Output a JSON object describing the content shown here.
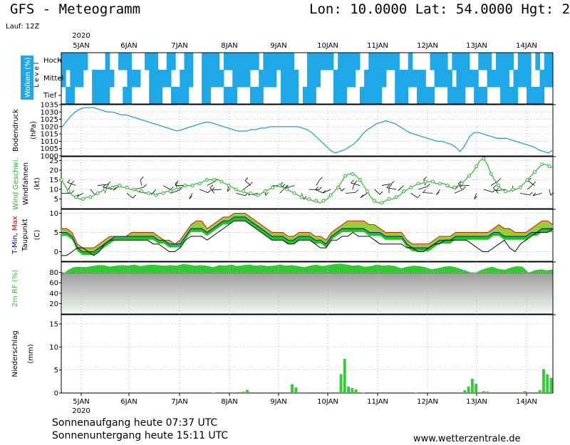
{
  "header": {
    "title": "GFS - Meteogramm",
    "location": "Lon: 10.0000 Lat: 54.0000 Hgt: 2",
    "run": "Lauf: 12Z"
  },
  "footer": {
    "sunrise": "Sonnenaufgang heute 07:37 UTC",
    "sunset": "Sonnenuntergang heute 15:11 UTC",
    "website": "www.wetterzentrale.de"
  },
  "colors": {
    "cloud": "#1fa8e8",
    "pressure": "#2a9fd6",
    "wind": "#2db82d",
    "rh": "#2ecc2e",
    "precip": "#33cc33",
    "tmin": "#0000cc",
    "tmax": "#dd0000",
    "temp_band": "#9acd32"
  },
  "chart_data": [
    {
      "type": "heatmap",
      "panel": "clouds",
      "ylabel": "Wolken (%)",
      "ylabel_side": "L e v e l",
      "levels": [
        "Hoch",
        "Mittel",
        "Tief"
      ],
      "x_top_year": "2020",
      "x_bottom_year": "2020",
      "x_ticks": [
        "5JAN",
        "6JAN",
        "7JAN",
        "8JAN",
        "9JAN",
        "10JAN",
        "11JAN",
        "12JAN",
        "13JAN",
        "14JAN"
      ],
      "cover_hoch": [
        1,
        1,
        1,
        1,
        1,
        1,
        0,
        0,
        0,
        0,
        1,
        0,
        0,
        1,
        1,
        1,
        0,
        0,
        0,
        1,
        1,
        1,
        0,
        0,
        1,
        1,
        0,
        0,
        1,
        1,
        0,
        0,
        1,
        1,
        1,
        1,
        0,
        1,
        1,
        1,
        1,
        1,
        1,
        1,
        1,
        0,
        1,
        1,
        1,
        1,
        1,
        1,
        1,
        0,
        0,
        0,
        1,
        1,
        1,
        1,
        1,
        1,
        0,
        1,
        1,
        1,
        1,
        1,
        0,
        0,
        1,
        1,
        1,
        1,
        1,
        1,
        1,
        0,
        0,
        1,
        0,
        0,
        0,
        0,
        1,
        1,
        1,
        1,
        0,
        1,
        1,
        1,
        1,
        0,
        0,
        1,
        1,
        1,
        0,
        1,
        1,
        1,
        1,
        0,
        1,
        1,
        1,
        0,
        1,
        0,
        1,
        1
      ],
      "cover_mittel": [
        1,
        0,
        1,
        1,
        1,
        0,
        0,
        1,
        1,
        1,
        1,
        1,
        0,
        0,
        0,
        1,
        1,
        1,
        0,
        0,
        1,
        1,
        1,
        1,
        1,
        0,
        0,
        1,
        1,
        1,
        0,
        0,
        1,
        1,
        1,
        1,
        1,
        0,
        0,
        1,
        1,
        1,
        1,
        0,
        0,
        1,
        1,
        1,
        1,
        0,
        1,
        1,
        1,
        1,
        0,
        0,
        1,
        1,
        1,
        0,
        0,
        0,
        1,
        1,
        1,
        1,
        1,
        0,
        0,
        1,
        1,
        1,
        1,
        1,
        0,
        0,
        1,
        1,
        1,
        1,
        1,
        1,
        1,
        0,
        0,
        1,
        1,
        1,
        1,
        0,
        1,
        1,
        1,
        1,
        1,
        0,
        0,
        1,
        1,
        1,
        1,
        1,
        0,
        1,
        1,
        1,
        1,
        0,
        0,
        1,
        1,
        1
      ],
      "cover_tief": [
        0,
        1,
        1,
        0,
        0,
        0,
        0,
        1,
        1,
        1,
        1,
        0,
        0,
        0,
        1,
        1,
        0,
        0,
        0,
        0,
        1,
        1,
        1,
        0,
        0,
        1,
        1,
        1,
        1,
        0,
        0,
        0,
        1,
        1,
        0,
        0,
        0,
        1,
        1,
        1,
        0,
        0,
        0,
        1,
        1,
        1,
        0,
        0,
        0,
        0,
        1,
        1,
        1,
        1,
        0,
        1,
        1,
        1,
        0,
        0,
        0,
        0,
        1,
        1,
        1,
        0,
        0,
        0,
        1,
        1,
        1,
        1,
        1,
        0,
        0,
        0,
        1,
        1,
        1,
        0,
        0,
        1,
        1,
        1,
        1,
        0,
        0,
        0,
        1,
        1,
        1,
        1,
        0,
        0,
        1,
        1,
        1,
        0,
        0,
        0,
        1,
        1,
        1,
        1,
        0,
        0,
        1,
        1,
        1,
        1,
        0,
        0
      ]
    },
    {
      "type": "line",
      "panel": "pressure",
      "ylabel": "Bodendruck",
      "unit": "(hPa)",
      "ylim": [
        1000,
        1035
      ],
      "yticks": [
        1000,
        1005,
        1010,
        1015,
        1020,
        1025,
        1030,
        1035
      ],
      "series": [
        {
          "values": [
            1019,
            1023,
            1027,
            1030,
            1032,
            1033,
            1033,
            1033,
            1032,
            1031,
            1030,
            1030,
            1029,
            1028,
            1028,
            1027,
            1026,
            1025,
            1024,
            1023,
            1022,
            1021,
            1020,
            1019,
            1018,
            1017,
            1018,
            1019,
            1020,
            1021,
            1022,
            1023,
            1023,
            1022,
            1021,
            1020,
            1019,
            1018,
            1017,
            1017,
            1017,
            1018,
            1018,
            1019,
            1019,
            1020,
            1020,
            1020,
            1020,
            1020,
            1020,
            1020,
            1019,
            1018,
            1016,
            1013,
            1010,
            1007,
            1004,
            1002,
            1003,
            1004,
            1006,
            1008,
            1011,
            1015,
            1018,
            1020,
            1022,
            1023,
            1024,
            1023,
            1022,
            1020,
            1018,
            1016,
            1015,
            1014,
            1013,
            1012,
            1011,
            1010,
            1010,
            1009,
            1008,
            1006,
            1003,
            1007,
            1013,
            1016,
            1016,
            1015,
            1014,
            1013,
            1012,
            1012,
            1012,
            1011,
            1010,
            1009,
            1008,
            1007,
            1006,
            1004,
            1003,
            1002,
            1004
          ]
        }
      ]
    },
    {
      "type": "line",
      "panel": "wind",
      "ylabel": "Wind Geschwi.",
      "ylabel2": "Windfahnen",
      "unit": "(kt)",
      "ylim": [
        0,
        25
      ],
      "yticks": [
        5,
        10,
        15,
        20,
        25
      ],
      "series": [
        {
          "values": [
            15,
            12,
            9,
            7,
            6,
            5,
            5,
            6,
            6,
            7,
            8,
            9,
            10,
            11,
            11,
            12,
            12,
            11,
            11,
            10,
            10,
            9,
            9,
            8,
            8,
            8,
            7,
            8,
            8,
            9,
            9,
            10,
            11,
            11,
            12,
            12,
            12,
            13,
            13,
            14,
            15,
            15,
            15,
            15,
            14,
            13,
            12,
            11,
            10,
            9,
            9,
            8,
            8,
            7,
            7,
            8,
            9,
            10,
            11,
            12,
            12,
            11,
            10,
            9,
            8,
            7,
            6,
            5,
            5,
            4,
            4,
            3,
            4,
            5,
            7,
            9,
            11,
            14,
            17,
            18,
            18,
            17,
            15,
            12,
            9,
            6,
            4,
            3,
            3,
            4,
            5,
            5,
            6,
            7,
            9,
            10,
            11,
            12,
            13,
            13,
            14,
            14,
            14,
            13,
            13,
            13,
            12,
            11,
            11,
            12,
            13,
            15,
            17,
            19,
            22,
            25,
            26,
            23,
            18,
            15,
            12,
            10,
            9,
            9,
            10,
            10,
            11,
            13,
            15,
            17,
            19,
            21,
            23,
            23,
            22,
            21
          ]
        }
      ]
    },
    {
      "type": "area",
      "panel": "temperature",
      "ylabel": "T-Min, Max",
      "ylabel2": "Taupunkt",
      "unit": "(C)",
      "ylim": [
        -2,
        10
      ],
      "yticks": [
        0,
        5,
        10
      ],
      "series": [
        {
          "values": [
            6,
            6,
            5,
            2,
            1,
            1,
            1,
            2,
            3,
            4,
            4,
            4,
            4,
            5,
            5,
            5,
            5,
            5,
            4,
            3,
            3,
            2,
            3,
            5,
            7,
            8,
            8,
            6,
            7,
            8,
            9,
            9,
            10,
            10,
            10,
            9,
            8,
            7,
            6,
            5,
            5,
            5,
            4,
            4,
            5,
            5,
            5,
            4,
            4,
            3,
            5,
            6,
            7,
            8,
            8,
            8,
            8,
            7,
            7,
            6,
            5,
            5,
            5,
            5,
            3,
            2,
            2,
            2,
            2,
            3,
            4,
            4,
            4,
            5,
            5,
            5,
            5,
            5,
            5,
            5,
            6,
            7,
            6,
            6,
            5,
            5,
            5,
            6,
            7,
            8,
            8,
            7
          ]
        },
        {
          "values": [
            5,
            5,
            4,
            1,
            0,
            0,
            0,
            1,
            2,
            3,
            4,
            4,
            4,
            4,
            4,
            4,
            4,
            4,
            3,
            3,
            2,
            2,
            2,
            4,
            6,
            6,
            6,
            5,
            6,
            7,
            8,
            8,
            9,
            9,
            9,
            8,
            7,
            6,
            5,
            4,
            4,
            4,
            3,
            3,
            4,
            4,
            4,
            3,
            3,
            2,
            4,
            5,
            6,
            6,
            6,
            6,
            6,
            5,
            5,
            5,
            4,
            4,
            4,
            4,
            2,
            1,
            1,
            1,
            1,
            2,
            3,
            3,
            3,
            4,
            4,
            4,
            4,
            4,
            4,
            4,
            5,
            5,
            4,
            4,
            4,
            4,
            4,
            5,
            5,
            6,
            6,
            6
          ]
        },
        {
          "values": [
            -1,
            -1,
            0,
            1,
            1,
            0,
            -1,
            0,
            2,
            3,
            3,
            3,
            3,
            3,
            3,
            3,
            3,
            2,
            2,
            1,
            0,
            0,
            1,
            3,
            4,
            4,
            4,
            3,
            4,
            5,
            6,
            7,
            8,
            8,
            8,
            7,
            6,
            5,
            4,
            3,
            3,
            3,
            2,
            2,
            3,
            3,
            3,
            2,
            1,
            1,
            3,
            3,
            4,
            4,
            5,
            4,
            4,
            4,
            3,
            2,
            2,
            2,
            2,
            2,
            1,
            1,
            0,
            0,
            1,
            2,
            2,
            3,
            3,
            3,
            3,
            3,
            2,
            1,
            0,
            0,
            1,
            2,
            3,
            1,
            0,
            2,
            3,
            4,
            5,
            5,
            5,
            6
          ]
        }
      ]
    },
    {
      "type": "area",
      "panel": "humidity",
      "ylabel": "2m RF (%)",
      "ylim": [
        0,
        100
      ],
      "yticks": [
        20,
        40,
        60,
        80
      ],
      "series": [
        {
          "values": [
            75,
            84,
            90,
            91,
            90,
            92,
            94,
            94,
            91,
            93,
            94,
            93,
            95,
            92,
            94,
            95,
            94,
            93,
            94,
            93,
            96,
            95,
            93,
            94,
            93,
            90,
            94,
            93,
            95,
            92,
            94,
            95,
            93,
            94,
            92,
            93,
            95,
            93,
            94,
            92,
            90,
            93,
            95,
            92,
            94,
            96,
            97,
            95,
            93,
            94,
            91,
            92,
            95,
            93,
            94,
            92,
            88,
            91,
            93,
            92,
            90,
            86,
            88,
            91,
            92,
            90,
            86,
            82,
            78,
            84,
            88,
            91,
            87,
            85,
            89,
            92,
            91,
            80,
            84,
            86,
            84,
            86
          ]
        }
      ]
    },
    {
      "type": "bar",
      "panel": "precipitation",
      "ylabel": "Niederschlag",
      "unit": "(mm)",
      "ylim": [
        0,
        17
      ],
      "yticks": [
        0,
        5,
        10,
        15
      ],
      "values": [
        0,
        0,
        0,
        0,
        0,
        0,
        0,
        0,
        0,
        0,
        0,
        0,
        0,
        0,
        0,
        0,
        0,
        0,
        0,
        0,
        0,
        0,
        0,
        0,
        0,
        0,
        0,
        0,
        0,
        0,
        0,
        0,
        0,
        0,
        0,
        0,
        0,
        0,
        0,
        0,
        0.1,
        0,
        0,
        0,
        0,
        0,
        0,
        0.2,
        0.3,
        0.7,
        0,
        0,
        0,
        0,
        0,
        0,
        0,
        0,
        0,
        0,
        0,
        1.9,
        1.2,
        0,
        0,
        0,
        0,
        0,
        0,
        0,
        0,
        0,
        0,
        0,
        4.1,
        7.4,
        1.4,
        1.1,
        0.8,
        0,
        0.1,
        0,
        0,
        0,
        0,
        0,
        0,
        0,
        0,
        0,
        0,
        0,
        0,
        0,
        0.1,
        0,
        0,
        0,
        0,
        0,
        0,
        0,
        0,
        0,
        0,
        0,
        0,
        0.6,
        1.4,
        3.1,
        2.0,
        0,
        0.4,
        0.3,
        0,
        0,
        0,
        0,
        0,
        0,
        0,
        0,
        0,
        0.4,
        0.2,
        0,
        0,
        0.6,
        5.2,
        4.1,
        3.3
      ]
    }
  ]
}
